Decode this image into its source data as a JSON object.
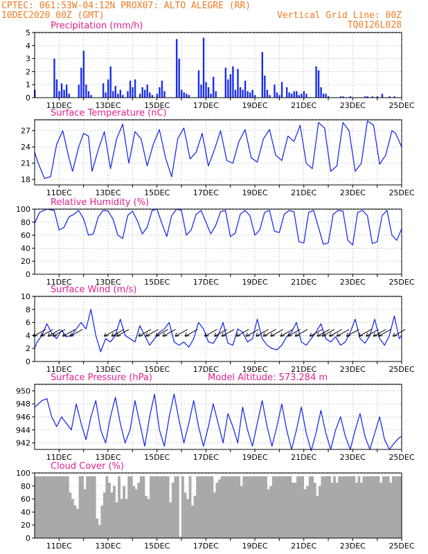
{
  "header": {
    "line1_left": "CPTEC:  061:53W-04:12N  PROX07: ALTO ALEGRE (RR)",
    "line2_left": "10DEC2020 00Z (GMT)",
    "line2_right": "Vertical Grid Line: 00Z",
    "line3_right": "TQ0126L028"
  },
  "colors": {
    "header": "#f07a1e",
    "title": "#e0208a",
    "series": "#1a2ee8",
    "cloud": "#a9a9a9",
    "grid": "#888888"
  },
  "x_ticks": [
    "11DEC",
    "13DEC",
    "15DEC",
    "17DEC",
    "19DEC",
    "21DEC",
    "23DEC",
    "25DEC"
  ],
  "model_altitude": "Model Altitude: 573.284 m",
  "chart_data": [
    {
      "type": "bar",
      "title": "Precipitation (mm/h)",
      "ylim": [
        0,
        5
      ],
      "yticks": [
        "0",
        "1",
        "2",
        "3",
        "4",
        "5"
      ],
      "x_days": [
        0.0,
        0.8,
        0.9,
        1.0,
        1.1,
        1.2,
        1.3,
        1.4,
        1.8,
        1.9,
        2.0,
        2.1,
        2.2,
        2.3,
        2.8,
        2.9,
        3.0,
        3.1,
        3.2,
        3.3,
        3.4,
        3.5,
        3.6,
        3.8,
        3.9,
        4.0,
        4.1,
        4.3,
        4.4,
        4.5,
        4.6,
        4.7,
        4.8,
        5.0,
        5.1,
        5.2,
        5.3,
        5.8,
        5.9,
        6.0,
        6.1,
        6.2,
        6.3,
        6.7,
        6.8,
        6.9,
        7.0,
        7.1,
        7.2,
        7.3,
        7.4,
        7.8,
        7.9,
        8.0,
        8.1,
        8.2,
        8.3,
        8.4,
        8.5,
        8.6,
        8.7,
        8.8,
        8.9,
        9.0,
        9.3,
        9.4,
        9.5,
        9.6,
        9.8,
        9.9,
        10.0,
        10.1,
        10.3,
        10.4,
        10.5,
        10.6,
        10.7,
        10.8,
        10.9,
        11.0,
        11.1,
        11.5,
        11.6,
        11.7,
        11.8,
        11.9,
        12.0,
        12.5,
        12.6,
        12.9,
        13.5,
        13.6,
        13.8,
        14.0,
        14.2,
        14.5,
        14.7
      ],
      "values": [
        0.6,
        3.0,
        1.4,
        0.5,
        1.1,
        0.6,
        1.0,
        0.3,
        1.0,
        2.3,
        3.6,
        1.0,
        0.5,
        0.2,
        1.1,
        0.4,
        1.4,
        2.4,
        0.5,
        0.9,
        0.3,
        0.6,
        0.2,
        0.5,
        1.3,
        0.8,
        1.4,
        0.3,
        0.8,
        0.6,
        1.0,
        0.4,
        0.2,
        0.3,
        0.8,
        1.3,
        0.5,
        4.5,
        3.0,
        0.6,
        0.4,
        0.3,
        0.2,
        2.1,
        1.0,
        4.6,
        1.2,
        0.8,
        0.3,
        1.6,
        0.5,
        2.3,
        1.4,
        1.8,
        2.4,
        0.6,
        2.2,
        0.8,
        0.6,
        1.3,
        0.5,
        0.4,
        0.6,
        0.2,
        3.5,
        1.7,
        0.6,
        0.2,
        1.0,
        0.4,
        0.2,
        1.2,
        0.8,
        0.4,
        0.3,
        0.5,
        0.5,
        0.2,
        0.3,
        0.5,
        0.3,
        2.4,
        2.1,
        0.8,
        0.3,
        0.3,
        0.1,
        0.1,
        0.1,
        0.1,
        0.1,
        0.1,
        0.1,
        0.1,
        0.3,
        0.1,
        0.1
      ]
    },
    {
      "type": "line",
      "title": "Surface Temperature (nC)",
      "ylim": [
        17,
        29
      ],
      "yticks": [
        "18",
        "21",
        "24",
        "27"
      ],
      "x_days": [
        0.0,
        0.15,
        0.4,
        0.65,
        0.9,
        1.15,
        1.4,
        1.55,
        1.8,
        2.0,
        2.2,
        2.35,
        2.6,
        2.85,
        3.1,
        3.35,
        3.6,
        3.85,
        4.1,
        4.35,
        4.6,
        4.85,
        5.1,
        5.35,
        5.6,
        5.85,
        6.1,
        6.35,
        6.6,
        6.85,
        7.1,
        7.35,
        7.6,
        7.85,
        8.1,
        8.35,
        8.6,
        8.85,
        9.1,
        9.35,
        9.6,
        9.85,
        10.1,
        10.35,
        10.6,
        10.85,
        11.1,
        11.35,
        11.6,
        11.85,
        12.1,
        12.35,
        12.6,
        12.85,
        13.1,
        13.35,
        13.6,
        13.85,
        14.1,
        14.35,
        14.6,
        14.75,
        15.0
      ],
      "values": [
        23.0,
        21.0,
        18.2,
        18.5,
        24.5,
        27.0,
        22.0,
        19.5,
        24.0,
        26.5,
        26.0,
        19.5,
        23.5,
        26.8,
        20.0,
        25.5,
        28.2,
        21.0,
        26.8,
        25.5,
        20.5,
        24.5,
        27.2,
        22.0,
        18.5,
        25.5,
        27.5,
        21.8,
        23.0,
        26.5,
        20.5,
        23.5,
        27.0,
        21.5,
        21.0,
        25.0,
        27.2,
        22.0,
        21.2,
        25.5,
        27.2,
        22.5,
        21.5,
        26.0,
        25.0,
        28.0,
        21.0,
        20.0,
        28.5,
        27.5,
        19.5,
        20.5,
        28.5,
        27.0,
        19.5,
        21.0,
        28.8,
        28.0,
        20.8,
        22.5,
        27.0,
        26.5,
        24.0
      ]
    },
    {
      "type": "line",
      "title": "Relative Humidity (%)",
      "ylim": [
        0,
        100
      ],
      "yticks": [
        "0",
        "20",
        "40",
        "60",
        "80",
        "100"
      ],
      "x_days": [
        0.0,
        0.2,
        0.5,
        0.8,
        1.0,
        1.2,
        1.4,
        1.6,
        1.8,
        2.0,
        2.2,
        2.4,
        2.6,
        2.8,
        3.0,
        3.2,
        3.4,
        3.6,
        3.8,
        4.0,
        4.2,
        4.4,
        4.6,
        4.8,
        5.0,
        5.2,
        5.4,
        5.6,
        5.8,
        6.0,
        6.2,
        6.4,
        6.6,
        6.8,
        7.0,
        7.2,
        7.4,
        7.6,
        7.8,
        8.0,
        8.2,
        8.4,
        8.6,
        8.8,
        9.0,
        9.2,
        9.4,
        9.6,
        9.8,
        10.0,
        10.2,
        10.4,
        10.6,
        10.8,
        11.0,
        11.2,
        11.4,
        11.6,
        11.8,
        12.0,
        12.2,
        12.4,
        12.6,
        12.8,
        13.0,
        13.2,
        13.4,
        13.6,
        13.8,
        14.0,
        14.2,
        14.4,
        14.6,
        14.8,
        15.0
      ],
      "values": [
        78,
        95,
        100,
        98,
        68,
        72,
        88,
        92,
        98,
        85,
        60,
        62,
        88,
        98,
        97,
        85,
        60,
        55,
        90,
        97,
        82,
        62,
        72,
        98,
        100,
        78,
        58,
        90,
        100,
        98,
        60,
        68,
        92,
        98,
        80,
        62,
        75,
        96,
        98,
        58,
        63,
        92,
        98,
        90,
        60,
        68,
        95,
        98,
        66,
        64,
        92,
        98,
        96,
        50,
        48,
        95,
        98,
        72,
        46,
        48,
        92,
        98,
        97,
        52,
        45,
        95,
        98,
        90,
        47,
        50,
        90,
        98,
        60,
        52,
        70
      ]
    },
    {
      "type": "line",
      "title": "Surface Wind (m/s)",
      "ylim": [
        0,
        10
      ],
      "yticks": [
        "0",
        "2",
        "4",
        "6",
        "8",
        "10"
      ],
      "x_days": [
        0.0,
        0.1,
        0.3,
        0.5,
        0.7,
        0.9,
        1.1,
        1.3,
        1.5,
        1.7,
        1.9,
        2.1,
        2.3,
        2.5,
        2.7,
        2.9,
        3.1,
        3.3,
        3.5,
        3.7,
        3.9,
        4.1,
        4.3,
        4.5,
        4.7,
        4.9,
        5.1,
        5.3,
        5.5,
        5.7,
        5.9,
        6.1,
        6.3,
        6.5,
        6.7,
        6.9,
        7.1,
        7.3,
        7.5,
        7.7,
        7.9,
        8.1,
        8.3,
        8.5,
        8.7,
        8.9,
        9.1,
        9.3,
        9.5,
        9.7,
        9.9,
        10.1,
        10.3,
        10.5,
        10.7,
        10.9,
        11.1,
        11.3,
        11.5,
        11.7,
        11.9,
        12.1,
        12.3,
        12.5,
        12.7,
        12.9,
        13.1,
        13.3,
        13.5,
        13.7,
        13.9,
        14.1,
        14.3,
        14.5,
        14.7,
        14.9,
        15.0
      ],
      "values": [
        2.0,
        3.0,
        4.0,
        5.8,
        4.3,
        3.5,
        4.8,
        3.8,
        4.0,
        5.0,
        6.0,
        5.0,
        8.0,
        4.0,
        1.5,
        3.5,
        3.0,
        4.0,
        6.5,
        4.0,
        3.5,
        3.0,
        5.5,
        4.0,
        2.5,
        3.5,
        4.5,
        5.0,
        6.0,
        3.0,
        2.5,
        3.0,
        2.2,
        3.5,
        6.0,
        5.0,
        3.0,
        2.8,
        4.0,
        6.0,
        2.8,
        2.5,
        5.0,
        4.5,
        3.0,
        3.5,
        6.5,
        3.5,
        2.5,
        2.0,
        1.8,
        2.5,
        3.8,
        4.5,
        6.0,
        3.0,
        2.5,
        3.5,
        4.5,
        5.8,
        3.5,
        3.0,
        3.8,
        2.5,
        3.0,
        4.5,
        6.5,
        3.5,
        2.8,
        4.0,
        6.5,
        3.5,
        2.5,
        4.0,
        7.0,
        3.5,
        4.0
      ],
      "arrows_x_days": [
        0.2,
        0.5,
        0.8,
        1.0,
        1.4,
        1.7,
        3.1,
        3.4,
        3.6,
        4.5,
        4.8,
        5.2,
        5.5,
        6.0,
        6.4,
        7.2,
        7.6,
        7.9,
        8.5,
        8.9,
        9.3,
        9.6,
        9.9,
        10.3,
        10.6,
        10.9,
        11.5,
        11.8,
        12.0,
        12.3,
        12.6,
        13.0,
        13.5,
        13.8,
        14.1,
        14.3,
        14.9
      ]
    },
    {
      "type": "line",
      "title": "Surface Pressure (hPa)",
      "ylim": [
        941,
        951
      ],
      "yticks": [
        "942",
        "944",
        "946",
        "948",
        "950"
      ],
      "x_days": [
        0.0,
        0.1,
        0.3,
        0.5,
        0.7,
        0.9,
        1.1,
        1.3,
        1.5,
        1.7,
        1.9,
        2.1,
        2.3,
        2.5,
        2.7,
        2.9,
        3.1,
        3.3,
        3.5,
        3.7,
        3.9,
        4.1,
        4.3,
        4.5,
        4.7,
        4.9,
        5.1,
        5.3,
        5.5,
        5.7,
        5.9,
        6.1,
        6.3,
        6.5,
        6.7,
        6.9,
        7.1,
        7.3,
        7.5,
        7.7,
        7.9,
        8.1,
        8.3,
        8.5,
        8.7,
        8.9,
        9.1,
        9.3,
        9.5,
        9.7,
        9.9,
        10.1,
        10.3,
        10.5,
        10.7,
        10.9,
        11.1,
        11.3,
        11.5,
        11.7,
        11.9,
        12.1,
        12.3,
        12.5,
        12.7,
        12.9,
        13.1,
        13.3,
        13.5,
        13.7,
        13.9,
        14.1,
        14.3,
        14.5,
        14.7,
        14.9,
        15.0
      ],
      "values": [
        947.5,
        947.8,
        948.5,
        948.8,
        946.0,
        944.5,
        946.0,
        945.0,
        944.0,
        948.0,
        945.0,
        942.5,
        946.0,
        948.5,
        944.0,
        942.0,
        946.0,
        949.0,
        945.0,
        942.0,
        944.0,
        948.5,
        945.0,
        941.5,
        946.0,
        949.5,
        944.0,
        941.5,
        946.0,
        949.5,
        945.5,
        942.0,
        945.0,
        948.5,
        944.5,
        941.5,
        944.5,
        948.0,
        945.0,
        942.0,
        946.5,
        944.5,
        942.0,
        947.5,
        944.0,
        941.5,
        945.0,
        948.5,
        944.5,
        941.5,
        944.5,
        948.0,
        944.0,
        941.0,
        944.0,
        947.5,
        943.5,
        940.8,
        943.5,
        947.0,
        943.5,
        941.0,
        944.0,
        946.0,
        943.0,
        941.0,
        944.0,
        946.5,
        943.0,
        941.0,
        943.5,
        946.0,
        942.5,
        941.0,
        942.0,
        942.8,
        943.0
      ]
    },
    {
      "type": "bar",
      "title": "Cloud Cover (%)",
      "ylim": [
        0,
        100
      ],
      "yticks": [
        "0",
        "20",
        "40",
        "60",
        "80",
        "100"
      ],
      "default_value": 95,
      "dip_x_days": [
        1.4,
        1.5,
        1.6,
        1.7,
        2.0,
        2.5,
        2.6,
        2.7,
        2.8,
        3.0,
        3.1,
        3.2,
        3.3,
        3.5,
        3.6,
        3.7,
        4.0,
        4.1,
        4.2,
        4.5,
        4.6,
        5.5,
        5.6,
        5.9,
        6.1,
        6.2,
        6.4,
        6.5,
        7.3,
        7.4,
        7.5,
        8.4,
        9.5,
        9.6,
        10.5,
        10.6,
        11.0,
        11.1,
        11.4,
        11.5,
        11.6,
        12.1,
        12.3,
        13.1,
        13.3,
        14.1,
        14.5
      ],
      "dip_values": [
        70,
        60,
        50,
        45,
        75,
        30,
        20,
        50,
        70,
        85,
        70,
        80,
        55,
        60,
        80,
        60,
        80,
        75,
        85,
        65,
        60,
        55,
        85,
        2,
        70,
        60,
        50,
        65,
        70,
        85,
        90,
        80,
        75,
        80,
        85,
        85,
        75,
        80,
        85,
        65,
        80,
        85,
        85,
        85,
        85,
        85,
        85
      ]
    }
  ]
}
